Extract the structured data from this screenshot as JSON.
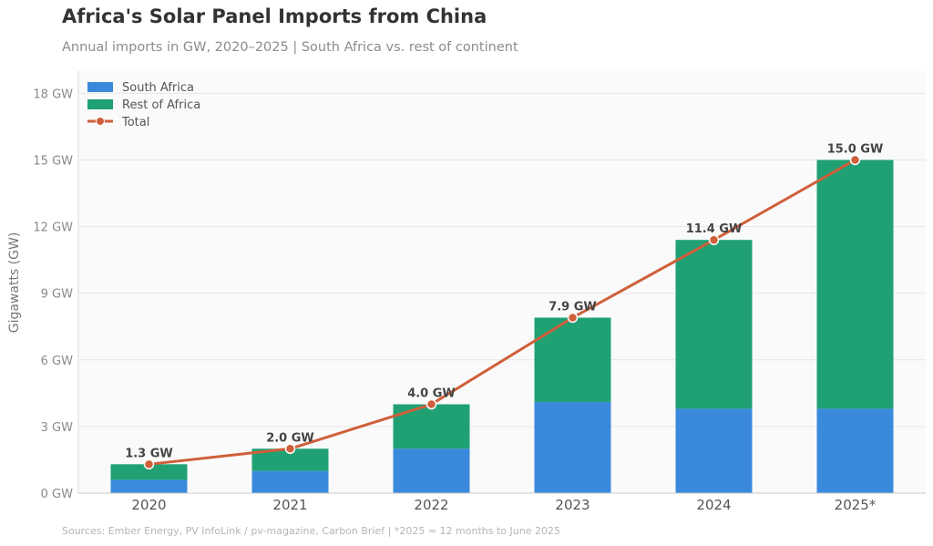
{
  "chart_data": {
    "type": "bar",
    "stacked": true,
    "title": "Africa's Solar Panel Imports from China",
    "subtitle": "Annual imports in GW, 2020–2025  |  South Africa vs. rest of continent",
    "ylabel": "Gigawatts (GW)",
    "xlabel": "",
    "categories": [
      "2020",
      "2021",
      "2022",
      "2023",
      "2024",
      "2025*"
    ],
    "series": [
      {
        "name": "South Africa",
        "values": [
          0.6,
          1.0,
          2.0,
          4.1,
          3.8,
          3.8
        ],
        "color": "#3a89dd"
      },
      {
        "name": "Rest of Africa",
        "values": [
          0.7,
          1.0,
          2.0,
          3.8,
          7.6,
          11.2
        ],
        "color": "#1fa174"
      }
    ],
    "line": {
      "name": "Total",
      "values": [
        1.3,
        2.0,
        4.0,
        7.9,
        11.4,
        15.0
      ],
      "color": "#cf5f3a"
    },
    "data_labels": [
      "1.3 GW",
      "2.0 GW",
      "4.0 GW",
      "7.9 GW",
      "11.4 GW",
      "15.0 GW"
    ],
    "ylim": [
      0,
      19
    ],
    "yticks": [
      0,
      3,
      6,
      9,
      12,
      15,
      18
    ],
    "ytick_labels": [
      "0 GW",
      "3 GW",
      "6 GW",
      "9 GW",
      "12 GW",
      "15 GW",
      "18 GW"
    ],
    "legend_position": "top-left",
    "grid": true
  },
  "source_note": "Sources: Ember Energy, PV InfoLink / pv-magazine, Carbon Brief  |  *2025 = 12 months to June 2025"
}
